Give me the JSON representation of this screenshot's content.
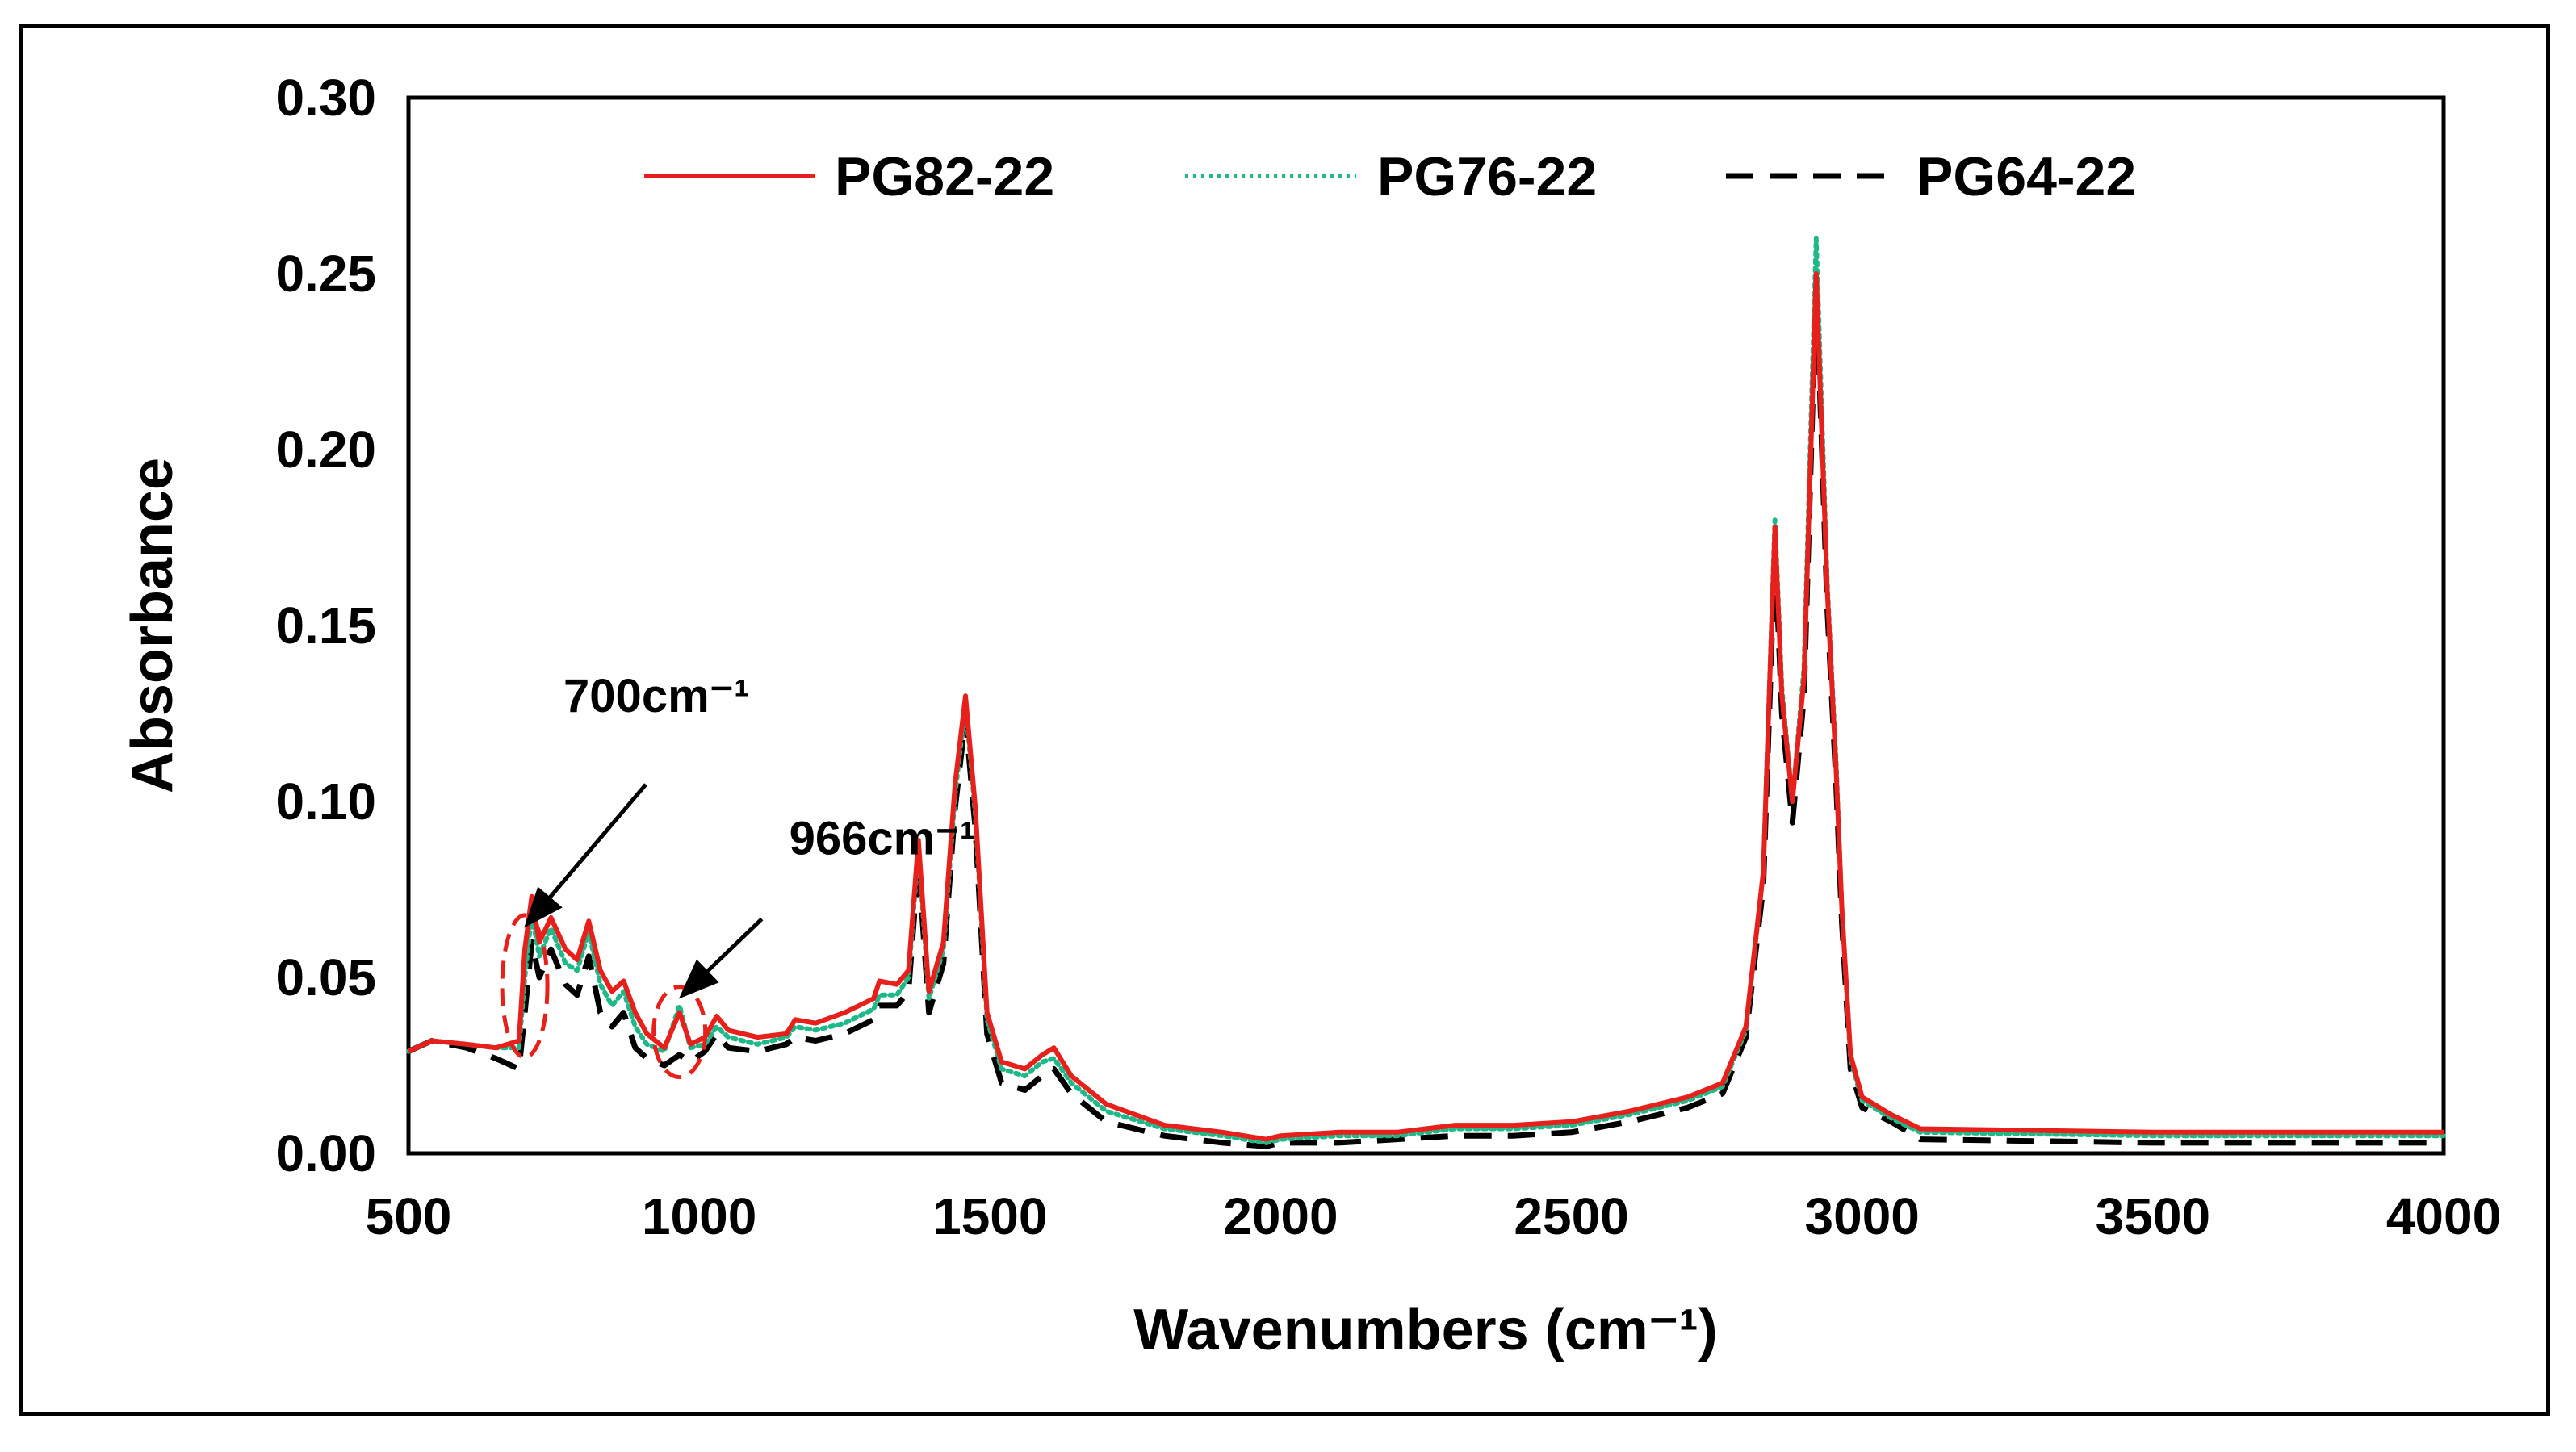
{
  "chart_data": {
    "type": "line",
    "xlabel": "Wavenumbers (cm⁻¹)",
    "ylabel": "Absorbance",
    "xlim": [
      500,
      4000
    ],
    "ylim": [
      0,
      0.3
    ],
    "x_ticks": [
      "500",
      "1000",
      "1500",
      "2000",
      "2500",
      "3000",
      "3500",
      "4000"
    ],
    "y_ticks": [
      "0.00",
      "0.05",
      "0.10",
      "0.15",
      "0.20",
      "0.25",
      "0.30"
    ],
    "grid": false,
    "legend_position": "top",
    "series": [
      {
        "name": "PG82-22",
        "color": "#e8201c",
        "style": "solid",
        "points": [
          [
            500,
            0.029
          ],
          [
            540,
            0.032
          ],
          [
            600,
            0.031
          ],
          [
            650,
            0.03
          ],
          [
            690,
            0.032
          ],
          [
            700,
            0.058
          ],
          [
            712,
            0.073
          ],
          [
            725,
            0.06
          ],
          [
            745,
            0.067
          ],
          [
            770,
            0.058
          ],
          [
            790,
            0.055
          ],
          [
            810,
            0.066
          ],
          [
            830,
            0.052
          ],
          [
            850,
            0.046
          ],
          [
            870,
            0.049
          ],
          [
            890,
            0.04
          ],
          [
            910,
            0.034
          ],
          [
            940,
            0.03
          ],
          [
            966,
            0.04
          ],
          [
            985,
            0.031
          ],
          [
            1010,
            0.033
          ],
          [
            1030,
            0.039
          ],
          [
            1050,
            0.035
          ],
          [
            1100,
            0.033
          ],
          [
            1150,
            0.034
          ],
          [
            1165,
            0.038
          ],
          [
            1200,
            0.037
          ],
          [
            1250,
            0.04
          ],
          [
            1300,
            0.044
          ],
          [
            1310,
            0.049
          ],
          [
            1340,
            0.048
          ],
          [
            1360,
            0.052
          ],
          [
            1377,
            0.089
          ],
          [
            1395,
            0.046
          ],
          [
            1420,
            0.06
          ],
          [
            1440,
            0.105
          ],
          [
            1458,
            0.13
          ],
          [
            1475,
            0.098
          ],
          [
            1495,
            0.04
          ],
          [
            1520,
            0.026
          ],
          [
            1560,
            0.024
          ],
          [
            1590,
            0.028
          ],
          [
            1610,
            0.03
          ],
          [
            1640,
            0.022
          ],
          [
            1700,
            0.014
          ],
          [
            1800,
            0.008
          ],
          [
            1900,
            0.006
          ],
          [
            1975,
            0.004
          ],
          [
            2000,
            0.005
          ],
          [
            2100,
            0.006
          ],
          [
            2200,
            0.006
          ],
          [
            2300,
            0.008
          ],
          [
            2400,
            0.008
          ],
          [
            2500,
            0.009
          ],
          [
            2600,
            0.012
          ],
          [
            2700,
            0.016
          ],
          [
            2760,
            0.02
          ],
          [
            2800,
            0.036
          ],
          [
            2830,
            0.08
          ],
          [
            2850,
            0.178
          ],
          [
            2862,
            0.13
          ],
          [
            2880,
            0.1
          ],
          [
            2900,
            0.135
          ],
          [
            2921,
            0.25
          ],
          [
            2940,
            0.16
          ],
          [
            2955,
            0.11
          ],
          [
            2965,
            0.07
          ],
          [
            2980,
            0.028
          ],
          [
            3000,
            0.016
          ],
          [
            3050,
            0.011
          ],
          [
            3100,
            0.007
          ],
          [
            3500,
            0.006
          ],
          [
            4000,
            0.006
          ]
        ]
      },
      {
        "name": "PG76-22",
        "color": "#1fb888",
        "style": "dotted",
        "points": [
          [
            500,
            0.029
          ],
          [
            540,
            0.032
          ],
          [
            600,
            0.031
          ],
          [
            650,
            0.03
          ],
          [
            690,
            0.03
          ],
          [
            700,
            0.05
          ],
          [
            712,
            0.068
          ],
          [
            725,
            0.056
          ],
          [
            745,
            0.064
          ],
          [
            770,
            0.054
          ],
          [
            790,
            0.052
          ],
          [
            810,
            0.063
          ],
          [
            830,
            0.048
          ],
          [
            850,
            0.042
          ],
          [
            870,
            0.046
          ],
          [
            890,
            0.036
          ],
          [
            910,
            0.031
          ],
          [
            940,
            0.029
          ],
          [
            966,
            0.042
          ],
          [
            985,
            0.03
          ],
          [
            1010,
            0.031
          ],
          [
            1030,
            0.036
          ],
          [
            1050,
            0.033
          ],
          [
            1100,
            0.031
          ],
          [
            1150,
            0.033
          ],
          [
            1165,
            0.036
          ],
          [
            1200,
            0.035
          ],
          [
            1250,
            0.037
          ],
          [
            1300,
            0.041
          ],
          [
            1310,
            0.045
          ],
          [
            1340,
            0.045
          ],
          [
            1360,
            0.05
          ],
          [
            1377,
            0.087
          ],
          [
            1395,
            0.044
          ],
          [
            1420,
            0.058
          ],
          [
            1440,
            0.102
          ],
          [
            1458,
            0.128
          ],
          [
            1475,
            0.096
          ],
          [
            1495,
            0.038
          ],
          [
            1520,
            0.024
          ],
          [
            1560,
            0.022
          ],
          [
            1590,
            0.026
          ],
          [
            1610,
            0.027
          ],
          [
            1640,
            0.02
          ],
          [
            1700,
            0.012
          ],
          [
            1800,
            0.007
          ],
          [
            1900,
            0.005
          ],
          [
            1975,
            0.003
          ],
          [
            2000,
            0.004
          ],
          [
            2100,
            0.005
          ],
          [
            2200,
            0.005
          ],
          [
            2300,
            0.007
          ],
          [
            2400,
            0.007
          ],
          [
            2500,
            0.008
          ],
          [
            2600,
            0.011
          ],
          [
            2700,
            0.015
          ],
          [
            2760,
            0.019
          ],
          [
            2800,
            0.035
          ],
          [
            2830,
            0.08
          ],
          [
            2850,
            0.18
          ],
          [
            2862,
            0.132
          ],
          [
            2880,
            0.1
          ],
          [
            2900,
            0.138
          ],
          [
            2921,
            0.26
          ],
          [
            2940,
            0.162
          ],
          [
            2955,
            0.112
          ],
          [
            2965,
            0.07
          ],
          [
            2980,
            0.027
          ],
          [
            3000,
            0.015
          ],
          [
            3050,
            0.01
          ],
          [
            3100,
            0.006
          ],
          [
            3500,
            0.005
          ],
          [
            4000,
            0.005
          ]
        ]
      },
      {
        "name": "PG64-22",
        "color": "#000000",
        "style": "dashed",
        "points": [
          [
            500,
            0.029
          ],
          [
            540,
            0.032
          ],
          [
            600,
            0.03
          ],
          [
            650,
            0.027
          ],
          [
            690,
            0.024
          ],
          [
            700,
            0.04
          ],
          [
            712,
            0.06
          ],
          [
            725,
            0.05
          ],
          [
            745,
            0.058
          ],
          [
            770,
            0.048
          ],
          [
            790,
            0.045
          ],
          [
            810,
            0.056
          ],
          [
            830,
            0.04
          ],
          [
            850,
            0.036
          ],
          [
            870,
            0.04
          ],
          [
            890,
            0.03
          ],
          [
            910,
            0.027
          ],
          [
            940,
            0.025
          ],
          [
            966,
            0.028
          ],
          [
            985,
            0.026
          ],
          [
            1010,
            0.029
          ],
          [
            1030,
            0.034
          ],
          [
            1050,
            0.03
          ],
          [
            1100,
            0.029
          ],
          [
            1150,
            0.031
          ],
          [
            1165,
            0.033
          ],
          [
            1200,
            0.032
          ],
          [
            1250,
            0.034
          ],
          [
            1300,
            0.038
          ],
          [
            1310,
            0.042
          ],
          [
            1340,
            0.042
          ],
          [
            1360,
            0.046
          ],
          [
            1377,
            0.083
          ],
          [
            1395,
            0.04
          ],
          [
            1420,
            0.054
          ],
          [
            1440,
            0.098
          ],
          [
            1458,
            0.124
          ],
          [
            1475,
            0.092
          ],
          [
            1495,
            0.034
          ],
          [
            1520,
            0.02
          ],
          [
            1560,
            0.018
          ],
          [
            1590,
            0.022
          ],
          [
            1610,
            0.024
          ],
          [
            1640,
            0.017
          ],
          [
            1700,
            0.009
          ],
          [
            1800,
            0.005
          ],
          [
            1900,
            0.003
          ],
          [
            1975,
            0.002
          ],
          [
            2000,
            0.003
          ],
          [
            2100,
            0.003
          ],
          [
            2200,
            0.004
          ],
          [
            2300,
            0.005
          ],
          [
            2400,
            0.005
          ],
          [
            2500,
            0.006
          ],
          [
            2600,
            0.009
          ],
          [
            2700,
            0.013
          ],
          [
            2760,
            0.017
          ],
          [
            2800,
            0.033
          ],
          [
            2830,
            0.076
          ],
          [
            2850,
            0.172
          ],
          [
            2862,
            0.125
          ],
          [
            2880,
            0.094
          ],
          [
            2900,
            0.13
          ],
          [
            2921,
            0.248
          ],
          [
            2940,
            0.155
          ],
          [
            2955,
            0.106
          ],
          [
            2965,
            0.066
          ],
          [
            2980,
            0.024
          ],
          [
            3000,
            0.013
          ],
          [
            3050,
            0.009
          ],
          [
            3100,
            0.004
          ],
          [
            3500,
            0.003
          ],
          [
            4000,
            0.003
          ]
        ]
      }
    ],
    "annotations": [
      {
        "text": "700cm⁻¹",
        "x": 700,
        "y": 0.0475
      },
      {
        "text": "966cm⁻¹",
        "x": 966,
        "y": 0.0345
      }
    ]
  }
}
